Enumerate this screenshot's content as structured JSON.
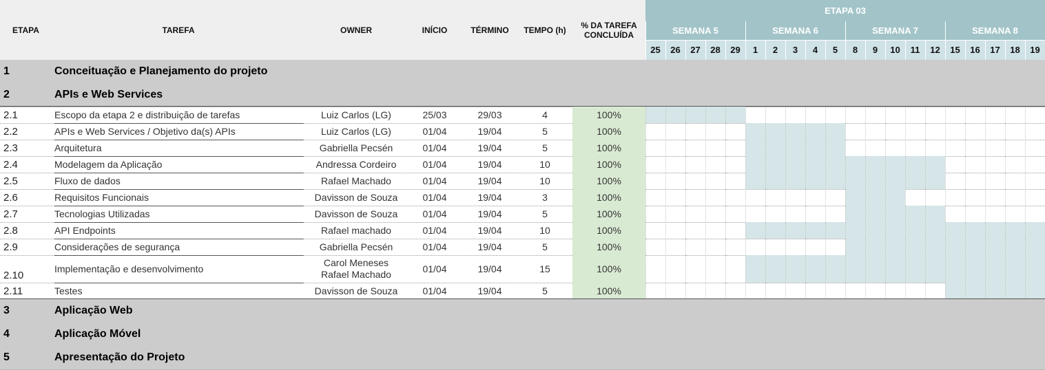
{
  "headers": {
    "etapa": "ETAPA",
    "tarefa": "TAREFA",
    "owner": "OWNER",
    "inicio": "INÍCIO",
    "termino": "TÉRMINO",
    "tempo": "TEMPO (h)",
    "pct": "% DA TAREFA CONCLUÍDA"
  },
  "timeline": {
    "etapa_label": "ETAPA 03",
    "weeks": [
      "SEMANA 5",
      "SEMANA 6",
      "SEMANA 7",
      "SEMANA 8"
    ],
    "days": [
      "25",
      "26",
      "27",
      "28",
      "29",
      "1",
      "2",
      "3",
      "4",
      "5",
      "8",
      "9",
      "10",
      "11",
      "12",
      "15",
      "16",
      "17",
      "18",
      "19"
    ]
  },
  "phases": [
    {
      "num": "1",
      "title": "Conceituação e Planejamento do projeto"
    },
    {
      "num": "2",
      "title": "APIs e Web Services"
    },
    {
      "num": "3",
      "title": "Aplicação Web"
    },
    {
      "num": "4",
      "title": "Aplicação Móvel"
    },
    {
      "num": "5",
      "title": "Apresentação do Projeto"
    }
  ],
  "tasks": [
    {
      "num": "2.1",
      "task": "Escopo da etapa 2 e distribuição de tarefas",
      "owner": "Luiz Carlos (LG)",
      "inicio": "25/03",
      "termino": "29/03",
      "tempo": "4",
      "pct": "100%",
      "active_days": [
        0,
        1,
        2,
        3,
        4
      ]
    },
    {
      "num": "2.2",
      "task": "APIs e Web Services / Objetivo da(s) APIs",
      "owner": "Luiz Carlos (LG)",
      "inicio": "01/04",
      "termino": "19/04",
      "tempo": "5",
      "pct": "100%",
      "active_days": [
        5,
        6,
        7,
        8,
        9
      ]
    },
    {
      "num": "2.3",
      "task": "Arquitetura",
      "owner": "Gabriella Pecsén",
      "inicio": "01/04",
      "termino": "19/04",
      "tempo": "5",
      "pct": "100%",
      "active_days": [
        5,
        6,
        7,
        8,
        9
      ]
    },
    {
      "num": "2.4",
      "task": "Modelagem da Aplicação",
      "owner": "Andressa Cordeiro",
      "inicio": "01/04",
      "termino": "19/04",
      "tempo": "10",
      "pct": "100%",
      "active_days": [
        5,
        6,
        7,
        8,
        9,
        10,
        11,
        12,
        13,
        14
      ]
    },
    {
      "num": "2.5",
      "task": "Fluxo de dados",
      "owner": "Rafael Machado",
      "inicio": "01/04",
      "termino": "19/04",
      "tempo": "10",
      "pct": "100%",
      "active_days": [
        5,
        6,
        7,
        8,
        9,
        10,
        11,
        12,
        13,
        14
      ]
    },
    {
      "num": "2.6",
      "task": "Requisitos Funcionais",
      "owner": "Davisson de Souza",
      "inicio": "01/04",
      "termino": "19/04",
      "tempo": "3",
      "pct": "100%",
      "active_days": [
        10,
        11,
        12
      ]
    },
    {
      "num": "2.7",
      "task": "Tecnologias Utilizadas",
      "owner": "Davisson de Souza",
      "inicio": "01/04",
      "termino": "19/04",
      "tempo": "5",
      "pct": "100%",
      "active_days": [
        10,
        11,
        12,
        13,
        14
      ]
    },
    {
      "num": "2.8",
      "task": "API Endpoints",
      "owner": "Rafael machado",
      "inicio": "01/04",
      "termino": "19/04",
      "tempo": "10",
      "pct": "100%",
      "active_days": [
        5,
        6,
        7,
        8,
        9,
        10,
        11,
        12,
        13,
        14,
        15,
        16,
        17,
        18,
        19
      ]
    },
    {
      "num": "2.9",
      "task": "Considerações de segurança",
      "owner": "Gabriella Pecsén",
      "inicio": "01/04",
      "termino": "19/04",
      "tempo": "5",
      "pct": "100%",
      "active_days": [
        10,
        11,
        12,
        13,
        14,
        15,
        16,
        17,
        18,
        19
      ]
    },
    {
      "num": "2.10",
      "task": "Implementação e desenvolvimento",
      "owner": "Carol Meneses\nRafael Machado",
      "inicio": "01/04",
      "termino": "19/04",
      "tempo": "15",
      "pct": "100%",
      "active_days": [
        5,
        6,
        7,
        8,
        9,
        10,
        11,
        12,
        13,
        14,
        15,
        16,
        17,
        18,
        19
      ]
    },
    {
      "num": "2.11",
      "task": "Testes",
      "owner": "Davisson de Souza",
      "inicio": "01/04",
      "termino": "19/04",
      "tempo": "5",
      "pct": "100%",
      "active_days": [
        15,
        16,
        17,
        18,
        19
      ]
    }
  ],
  "colors": {
    "header_bg": "#efefef",
    "timeline_band": "#a2c4c9",
    "day_header": "#cfe2e6",
    "bar_fill": "#d5e5e8",
    "pct_fill": "#d9ead3",
    "phase_bg": "#cccccc"
  }
}
